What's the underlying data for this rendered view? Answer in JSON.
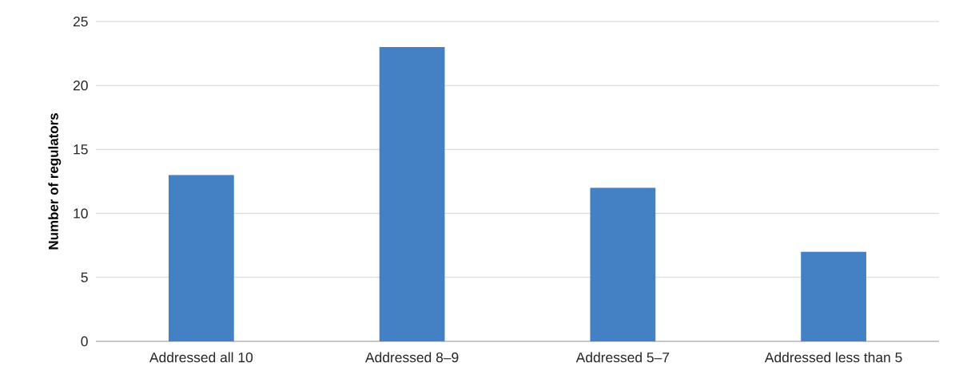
{
  "chart_data": {
    "type": "bar",
    "ylabel": "Number of regulators",
    "categories": [
      "Addressed all 10",
      "Addressed 8–9",
      "Addressed 5–7",
      "Addressed less than 5"
    ],
    "values": [
      13,
      23,
      12,
      7
    ],
    "color": "#4480c4",
    "ylim": [
      0,
      25
    ],
    "yticks": [
      0,
      5,
      10,
      15,
      20,
      25
    ],
    "grid": "y"
  }
}
